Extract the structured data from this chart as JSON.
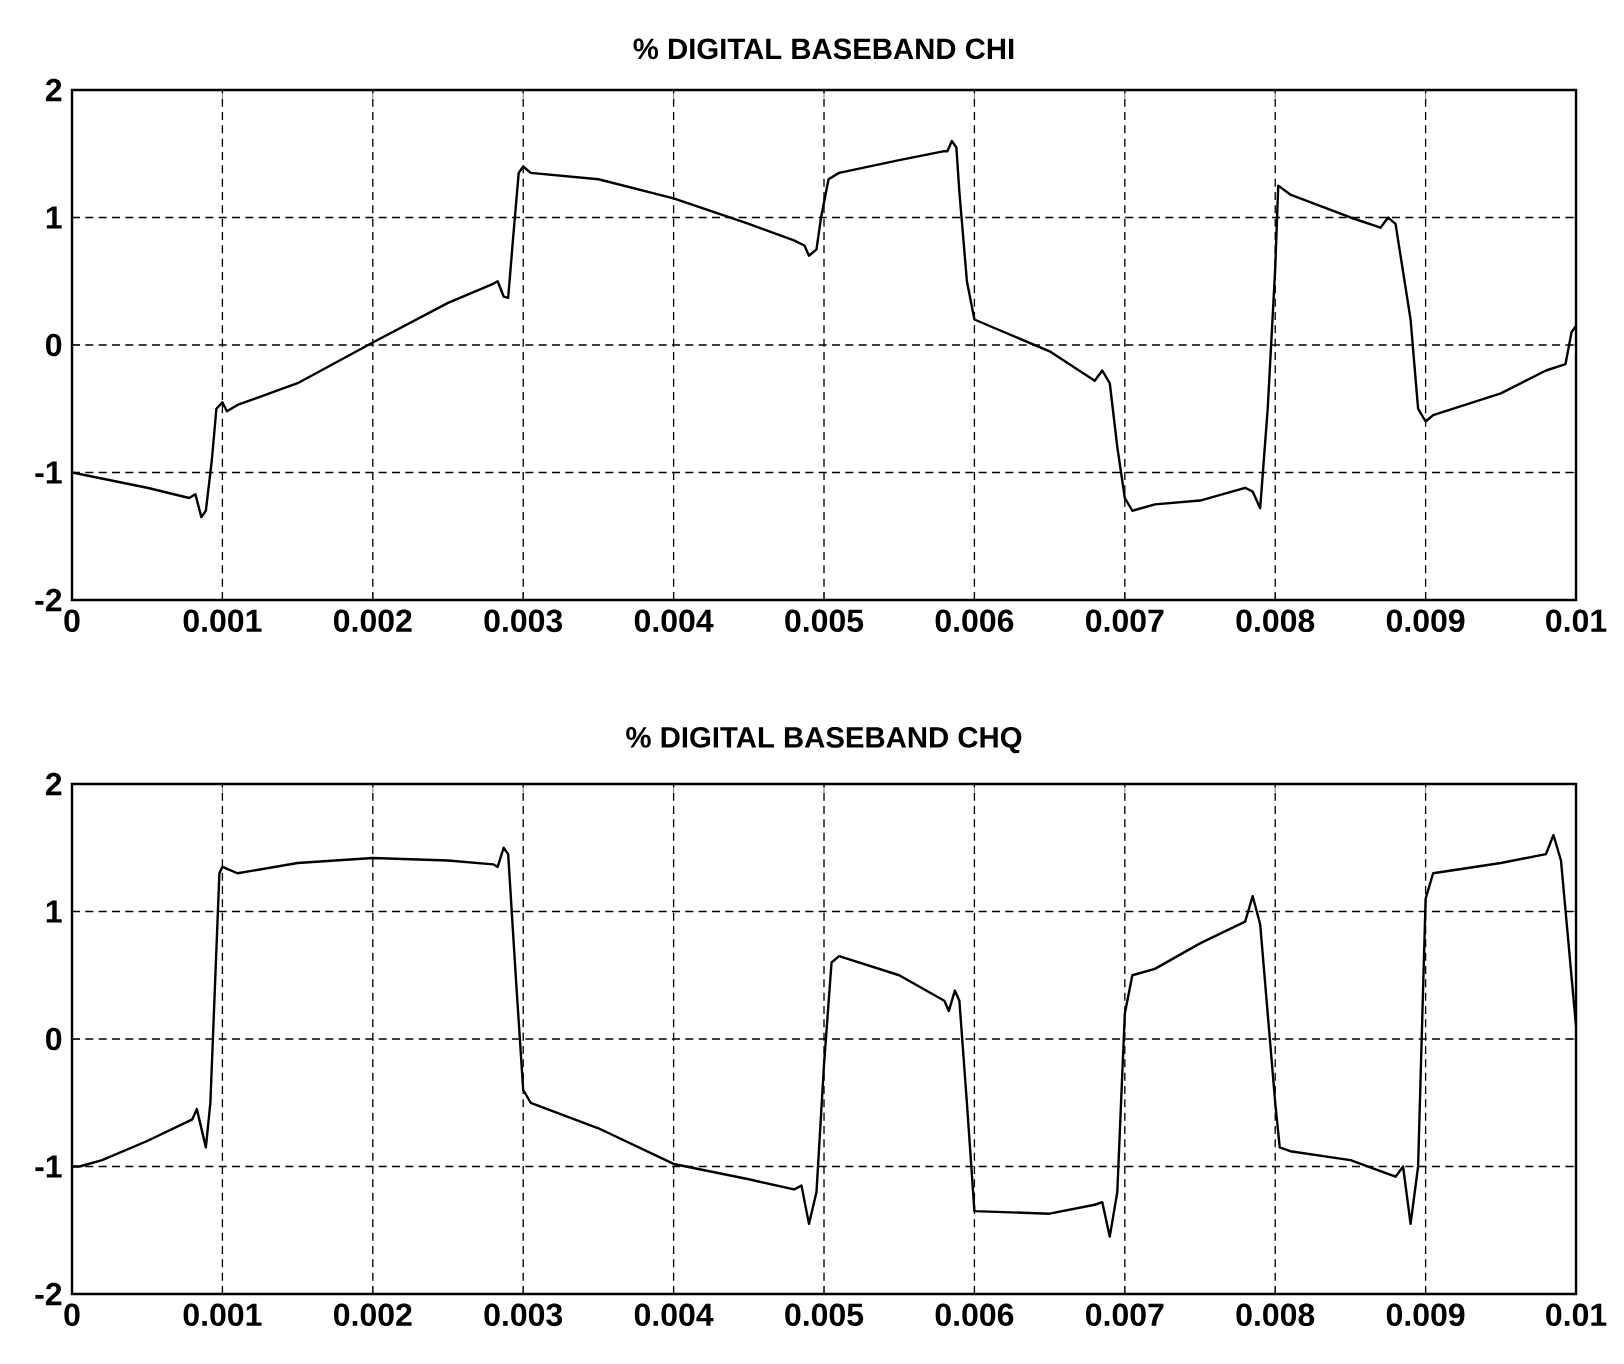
{
  "chart_data": [
    {
      "type": "line",
      "title": "% DIGITAL BASEBAND CHI",
      "xlim": [
        0,
        0.01
      ],
      "ylim": [
        -2,
        2
      ],
      "xticks": [
        0,
        0.001,
        0.002,
        0.003,
        0.004,
        0.005,
        0.006,
        0.007,
        0.008,
        0.009,
        0.01
      ],
      "yticks": [
        -2,
        -1,
        0,
        1,
        2
      ],
      "grid": true,
      "x": [
        0,
        0.0005,
        0.00078,
        0.00082,
        0.00086,
        0.00089,
        0.00093,
        0.00096,
        0.001,
        0.00103,
        0.0011,
        0.0015,
        0.002,
        0.0025,
        0.0028,
        0.00283,
        0.00287,
        0.0029,
        0.00293,
        0.00297,
        0.003,
        0.00305,
        0.0035,
        0.004,
        0.0045,
        0.0048,
        0.00487,
        0.0049,
        0.00495,
        0.00498,
        0.00503,
        0.0051,
        0.0055,
        0.0058,
        0.00582,
        0.00585,
        0.00588,
        0.0059,
        0.00595,
        0.006,
        0.0065,
        0.0068,
        0.00685,
        0.0069,
        0.00695,
        0.007,
        0.00705,
        0.0072,
        0.0075,
        0.0078,
        0.00785,
        0.0079,
        0.00795,
        0.008,
        0.00802,
        0.0081,
        0.0085,
        0.0087,
        0.00875,
        0.0088,
        0.0089,
        0.00895,
        0.009,
        0.00905,
        0.0095,
        0.0098,
        0.00993,
        0.00997,
        0.01
      ],
      "series": [
        {
          "color": "#000000",
          "values": [
            -1.0,
            -1.12,
            -1.2,
            -1.17,
            -1.35,
            -1.3,
            -0.9,
            -0.5,
            -0.45,
            -0.52,
            -0.47,
            -0.3,
            0.02,
            0.33,
            0.48,
            0.5,
            0.38,
            0.37,
            0.8,
            1.35,
            1.4,
            1.35,
            1.3,
            1.15,
            0.95,
            0.82,
            0.78,
            0.7,
            0.75,
            1.0,
            1.3,
            1.35,
            1.45,
            1.52,
            1.52,
            1.6,
            1.55,
            1.2,
            0.5,
            0.2,
            -0.05,
            -0.28,
            -0.2,
            -0.3,
            -0.8,
            -1.2,
            -1.3,
            -1.25,
            -1.22,
            -1.12,
            -1.15,
            -1.28,
            -0.5,
            0.6,
            1.25,
            1.18,
            1.0,
            0.92,
            1.0,
            0.95,
            0.2,
            -0.5,
            -0.6,
            -0.55,
            -0.38,
            -0.2,
            -0.15,
            0.1,
            0.15
          ]
        }
      ]
    },
    {
      "type": "line",
      "title": "% DIGITAL BASEBAND CHQ",
      "xlim": [
        0,
        0.01
      ],
      "ylim": [
        -2,
        2
      ],
      "xticks": [
        0,
        0.001,
        0.002,
        0.003,
        0.004,
        0.005,
        0.006,
        0.007,
        0.008,
        0.009,
        0.01
      ],
      "yticks": [
        -2,
        -1,
        0,
        1,
        2
      ],
      "grid": true,
      "x": [
        0,
        5e-05,
        0.0002,
        0.0005,
        0.0008,
        0.00083,
        0.00087,
        0.00089,
        0.00092,
        0.00095,
        0.00098,
        0.001,
        0.0011,
        0.0015,
        0.002,
        0.0025,
        0.0028,
        0.00283,
        0.00287,
        0.0029,
        0.00295,
        0.003,
        0.00305,
        0.0035,
        0.004,
        0.0045,
        0.0048,
        0.00485,
        0.0049,
        0.00495,
        0.005,
        0.00505,
        0.0051,
        0.0055,
        0.0058,
        0.00583,
        0.00587,
        0.0059,
        0.00595,
        0.006,
        0.0065,
        0.0068,
        0.00685,
        0.0069,
        0.00695,
        0.007,
        0.00705,
        0.0072,
        0.0075,
        0.0078,
        0.00782,
        0.00785,
        0.0079,
        0.008,
        0.00803,
        0.0081,
        0.0085,
        0.0088,
        0.00885,
        0.0089,
        0.00895,
        0.009,
        0.00905,
        0.0095,
        0.0098,
        0.00985,
        0.0099,
        0.01
      ],
      "series": [
        {
          "color": "#000000",
          "values": [
            -1.0,
            -1.0,
            -0.95,
            -0.8,
            -0.63,
            -0.55,
            -0.75,
            -0.85,
            -0.5,
            0.4,
            1.3,
            1.35,
            1.3,
            1.38,
            1.42,
            1.4,
            1.37,
            1.35,
            1.5,
            1.45,
            0.5,
            -0.4,
            -0.5,
            -0.7,
            -0.98,
            -1.1,
            -1.18,
            -1.15,
            -1.45,
            -1.2,
            -0.2,
            0.6,
            0.65,
            0.5,
            0.3,
            0.22,
            0.38,
            0.3,
            -0.5,
            -1.35,
            -1.37,
            -1.3,
            -1.28,
            -1.55,
            -1.2,
            0.2,
            0.5,
            0.55,
            0.75,
            0.92,
            1.0,
            1.12,
            0.9,
            -0.5,
            -0.85,
            -0.88,
            -0.95,
            -1.08,
            -1.0,
            -1.45,
            -1.0,
            1.1,
            1.3,
            1.38,
            1.45,
            1.6,
            1.4,
            0.1
          ]
        }
      ]
    }
  ]
}
